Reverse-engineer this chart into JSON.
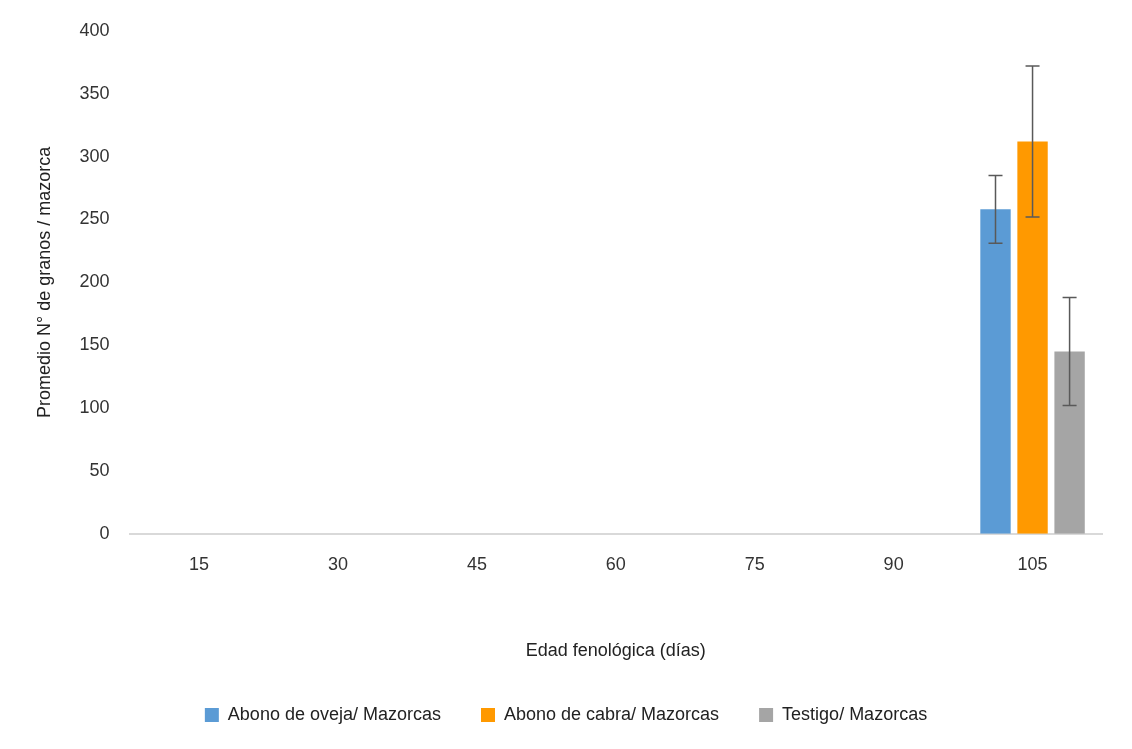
{
  "chart_data": {
    "type": "bar",
    "xlabel": "Edad fenológica (días)",
    "ylabel": "Promedio N° de granos / mazorca",
    "categories": [
      "15",
      "30",
      "45",
      "60",
      "75",
      "90",
      "105"
    ],
    "series": [
      {
        "name": "Abono de oveja/ Mazorcas",
        "color": "#5b9bd5",
        "values": [
          0,
          0,
          0,
          0,
          0,
          0,
          258
        ],
        "errors": [
          null,
          null,
          null,
          null,
          null,
          null,
          27
        ]
      },
      {
        "name": "Abono de cabra/ Mazorcas",
        "color": "#ff9900",
        "values": [
          0,
          0,
          0,
          0,
          0,
          0,
          312
        ],
        "errors": [
          null,
          null,
          null,
          null,
          null,
          null,
          60
        ]
      },
      {
        "name": "Testigo/ Mazorcas",
        "color": "#a5a5a5",
        "values": [
          0,
          0,
          0,
          0,
          0,
          0,
          145
        ],
        "errors": [
          null,
          null,
          null,
          null,
          null,
          null,
          43
        ]
      }
    ],
    "ylim": [
      0,
      400
    ],
    "yticks": [
      0,
      50,
      100,
      150,
      200,
      250,
      300,
      350,
      400
    ],
    "grid": false,
    "legend": "bottom"
  }
}
